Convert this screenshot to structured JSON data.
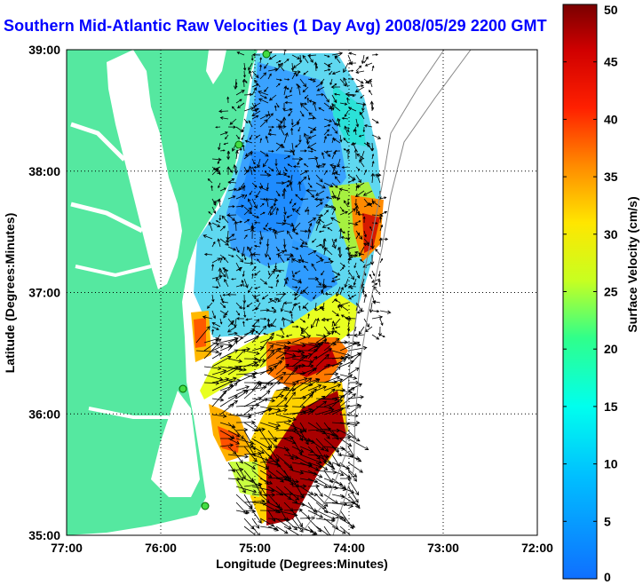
{
  "title": "Southern Mid-Atlantic Raw Velocities (1 Day Avg) 2008/05/29 2200 GMT",
  "map": {
    "x_axis_label": "Longitude (Degrees:Minutes)",
    "y_axis_label": "Latitude (Degrees:Minutes)",
    "x_ticks": [
      "77:00",
      "76:00",
      "75:00",
      "74:00",
      "73:00",
      "72:00"
    ],
    "y_ticks": [
      "39:00",
      "38:00",
      "37:00",
      "36:00",
      "35:00"
    ],
    "lon_range": [
      -77,
      -72
    ],
    "lat_range": [
      35,
      39
    ],
    "grid": true,
    "colors": {
      "land": "#55e8a0",
      "water": "#ffffff",
      "frame": "#000000",
      "title": "#0000ff"
    }
  },
  "colorbar": {
    "label": "Surface Velocity (cm/s)",
    "ticks": [
      "50",
      "45",
      "40",
      "35",
      "30",
      "25",
      "20",
      "15",
      "10",
      "5",
      "0"
    ],
    "range": [
      0,
      50
    ]
  }
}
